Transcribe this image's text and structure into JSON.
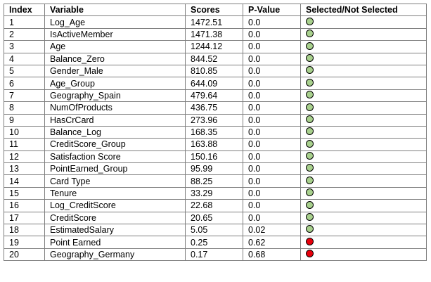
{
  "colors": {
    "selected": "#a8d08d",
    "not_selected": "#e8000b",
    "border": "#7f7f7f"
  },
  "table": {
    "headers": [
      "Index",
      "Variable",
      "Scores",
      "P-Value",
      "Selected/Not Selected"
    ],
    "rows": [
      {
        "index": "1",
        "variable": "Log_Age",
        "score": "1472.51",
        "pvalue": "0.0",
        "status": "selected",
        "status_icon": "green-circle-icon"
      },
      {
        "index": "2",
        "variable": "IsActiveMember",
        "score": "1471.38",
        "pvalue": "0.0",
        "status": "selected",
        "status_icon": "green-circle-icon"
      },
      {
        "index": "3",
        "variable": "Age",
        "score": "1244.12",
        "pvalue": "0.0",
        "status": "selected",
        "status_icon": "green-circle-icon"
      },
      {
        "index": "4",
        "variable": "Balance_Zero",
        "score": "844.52",
        "pvalue": "0.0",
        "status": "selected",
        "status_icon": "green-circle-icon"
      },
      {
        "index": "5",
        "variable": "Gender_Male",
        "score": "810.85",
        "pvalue": "0.0",
        "status": "selected",
        "status_icon": "green-circle-icon"
      },
      {
        "index": "6",
        "variable": "Age_Group",
        "score": "644.09",
        "pvalue": "0.0",
        "status": "selected",
        "status_icon": "green-circle-icon"
      },
      {
        "index": "7",
        "variable": "Geography_Spain",
        "score": "479.64",
        "pvalue": "0.0",
        "status": "selected",
        "status_icon": "green-circle-icon"
      },
      {
        "index": "8",
        "variable": "NumOfProducts",
        "score": "436.75",
        "pvalue": "0.0",
        "status": "selected",
        "status_icon": "green-circle-icon"
      },
      {
        "index": "9",
        "variable": "HasCrCard",
        "score": "273.96",
        "pvalue": "0.0",
        "status": "selected",
        "status_icon": "green-circle-icon"
      },
      {
        "index": "10",
        "variable": "Balance_Log",
        "score": "168.35",
        "pvalue": "0.0",
        "status": "selected",
        "status_icon": "green-circle-icon"
      },
      {
        "index": "11",
        "variable": "CreditScore_Group",
        "score": "163.88",
        "pvalue": "0.0",
        "status": "selected",
        "status_icon": "green-circle-icon"
      },
      {
        "index": "12",
        "variable": "Satisfaction Score",
        "score": "150.16",
        "pvalue": "0.0",
        "status": "selected",
        "status_icon": "green-circle-icon"
      },
      {
        "index": "13",
        "variable": "PointEarned_Group",
        "score": "95.99",
        "pvalue": "0.0",
        "status": "selected",
        "status_icon": "green-circle-icon"
      },
      {
        "index": "14",
        "variable": "Card Type",
        "score": "88.25",
        "pvalue": "0.0",
        "status": "selected",
        "status_icon": "green-circle-icon"
      },
      {
        "index": "15",
        "variable": "Tenure",
        "score": "33.29",
        "pvalue": "0.0",
        "status": "selected",
        "status_icon": "green-circle-icon"
      },
      {
        "index": "16",
        "variable": "Log_CreditScore",
        "score": "22.68",
        "pvalue": "0.0",
        "status": "selected",
        "status_icon": "green-circle-icon"
      },
      {
        "index": "17",
        "variable": "CreditScore",
        "score": "20.65",
        "pvalue": "0.0",
        "status": "selected",
        "status_icon": "green-circle-icon"
      },
      {
        "index": "18",
        "variable": "EstimatedSalary",
        "score": "5.05",
        "pvalue": "0.02",
        "status": "selected",
        "status_icon": "green-circle-icon"
      },
      {
        "index": "19",
        "variable": "Point Earned",
        "score": "0.25",
        "pvalue": "0.62",
        "status": "not_selected",
        "status_icon": "red-circle-icon"
      },
      {
        "index": "20",
        "variable": "Geography_Germany",
        "score": "0.17",
        "pvalue": "0.68",
        "status": "not_selected",
        "status_icon": "red-circle-icon"
      }
    ]
  }
}
